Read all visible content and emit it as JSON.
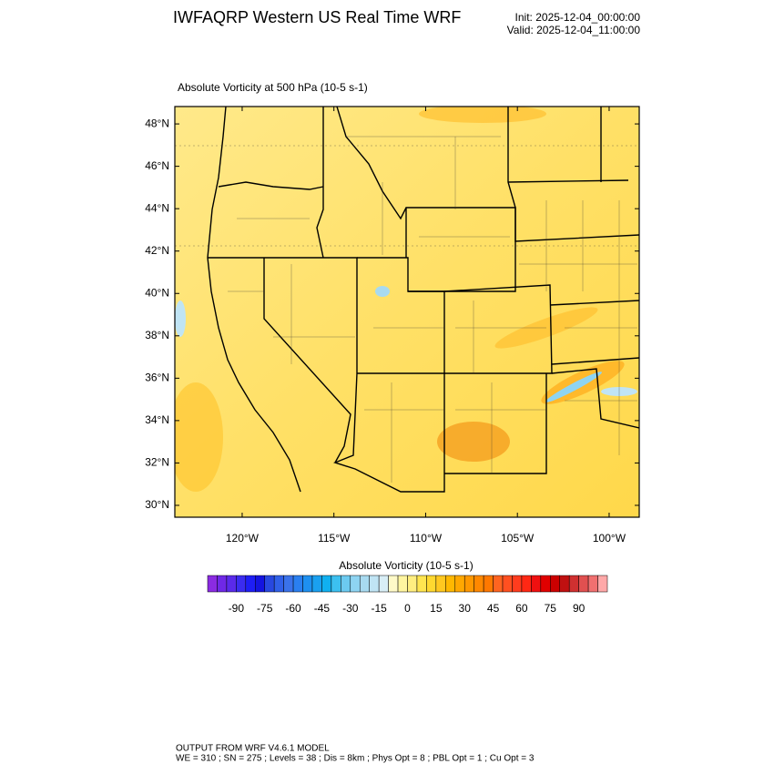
{
  "header": {
    "title": "IWFAQRP Western US Real Time WRF",
    "init": "Init: 2025-12-04_00:00:00",
    "valid": "Valid: 2025-12-04_11:00:00"
  },
  "map": {
    "subtitle": "Absolute Vorticity at 500 hPa   (10-5 s-1)",
    "lon_lim": [
      -123.67,
      -98.36
    ],
    "lat_lim": [
      29.44,
      48.82
    ],
    "lat_ticks": [
      {
        "value": 30,
        "label": "30°N"
      },
      {
        "value": 32,
        "label": "32°N"
      },
      {
        "value": 34,
        "label": "34°N"
      },
      {
        "value": 36,
        "label": "36°N"
      },
      {
        "value": 38,
        "label": "38°N"
      },
      {
        "value": 40,
        "label": "40°N"
      },
      {
        "value": 42,
        "label": "42°N"
      },
      {
        "value": 44,
        "label": "44°N"
      },
      {
        "value": 46,
        "label": "46°N"
      },
      {
        "value": 48,
        "label": "48°N"
      }
    ],
    "lon_ticks": [
      {
        "value": -120,
        "label": "120°W"
      },
      {
        "value": -115,
        "label": "115°W"
      },
      {
        "value": -110,
        "label": "110°W"
      },
      {
        "value": -105,
        "label": "105°W"
      },
      {
        "value": -100,
        "label": "100°W"
      }
    ]
  },
  "colorbar": {
    "title": "Absolute Vorticity  (10-5 s-1)",
    "range": [
      -105,
      105
    ],
    "colors": [
      "#8b2be2",
      "#6f28e6",
      "#5a2aea",
      "#3a2cf0",
      "#1e1ef5",
      "#1414e0",
      "#2848e0",
      "#3060e8",
      "#3a72ea",
      "#2a7ff0",
      "#1e90f0",
      "#1aa0f0",
      "#10b0f0",
      "#3cc0f0",
      "#6ccaf0",
      "#8ed4f2",
      "#a8daf0",
      "#c0e4f4",
      "#d8eef6",
      "#fffac8",
      "#fff5a0",
      "#ffee80",
      "#ffe550",
      "#ffd830",
      "#ffc820",
      "#ffb800",
      "#ffa800",
      "#ff9800",
      "#ff8800",
      "#ff7800",
      "#ff6420",
      "#ff5020",
      "#ff3c1e",
      "#ff2814",
      "#f01010",
      "#e00000",
      "#cc0000",
      "#c01010",
      "#d03030",
      "#e05050",
      "#f07070",
      "#ffa8a8"
    ],
    "ticks": [
      -90,
      -75,
      -60,
      -45,
      -30,
      -15,
      0,
      15,
      30,
      45,
      60,
      75,
      90
    ]
  },
  "footer": {
    "line1": "OUTPUT FROM WRF V4.6.1 MODEL",
    "line2": "WE = 310 ; SN = 275 ; Levels = 38 ; Dis = 8km ; Phys Opt = 8 ; PBL Opt = 1 ; Cu Opt = 3"
  }
}
